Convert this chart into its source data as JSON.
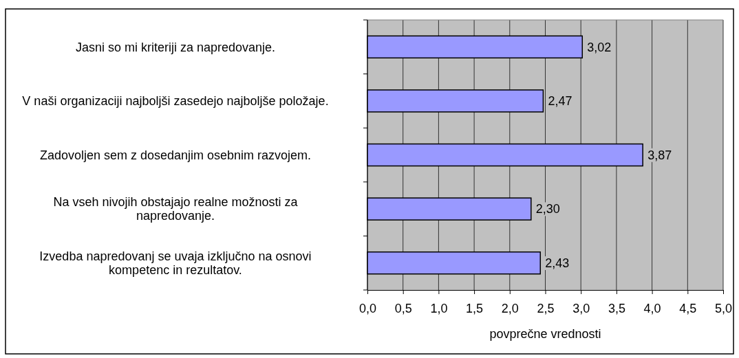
{
  "chart_data": {
    "type": "bar",
    "orientation": "horizontal",
    "xlabel": "povprečne vrednosti",
    "categories": [
      "Jasni so mi kriteriji za napredovanje.",
      "V naši organizaciji najboljši zasedejo najboljše položaje.",
      "Zadovoljen sem z dosedanjim osebnim razvojem.",
      "Na vseh nivojih obstajajo realne možnosti za napredovanje.",
      "Izvedba napredovanj se uvaja izključno na osnovi kompetenc in rezultatov."
    ],
    "values": [
      3.02,
      2.47,
      3.87,
      2.3,
      2.43
    ],
    "value_labels": [
      "3,02",
      "2,47",
      "3,87",
      "2,30",
      "2,43"
    ],
    "color": "#9999ff",
    "xlim": [
      0,
      5
    ],
    "xticks": [
      {
        "value": 0,
        "label": "0,0"
      },
      {
        "value": 0.5,
        "label": "0,5"
      },
      {
        "value": 1,
        "label": "1,0"
      },
      {
        "value": 1.5,
        "label": "1,5"
      },
      {
        "value": 2,
        "label": "2,0"
      },
      {
        "value": 2.5,
        "label": "2,5"
      },
      {
        "value": 3,
        "label": "3,0"
      },
      {
        "value": 3.5,
        "label": "3,5"
      },
      {
        "value": 4,
        "label": "4,0"
      },
      {
        "value": 4.5,
        "label": "4,5"
      },
      {
        "value": 5,
        "label": "5,0"
      }
    ],
    "grid": "x"
  }
}
